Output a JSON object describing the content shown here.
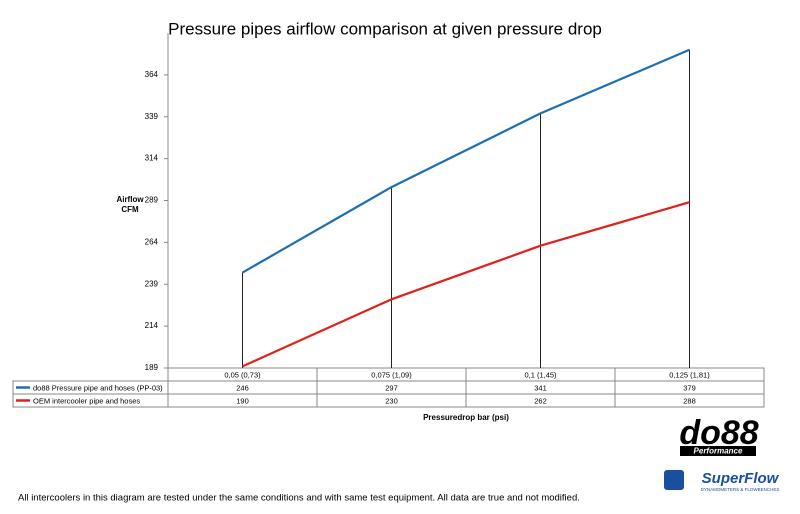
{
  "chart_data": {
    "type": "line",
    "title": "Pressure pipes airflow comparison at given pressure drop",
    "ylabel": [
      "Airflow",
      "CFM"
    ],
    "xlabel": "Pressuredrop bar (psi)",
    "categories": [
      "0,05 (0,73)",
      "0,075 (1,09)",
      "0,1 (1,45)",
      "0,125 (1,81)"
    ],
    "series": [
      {
        "name": "do88 Pressure pipe and hoses (PP-03)",
        "color": "#1f6fb0",
        "values": [
          246,
          297,
          341,
          379
        ]
      },
      {
        "name": "OEM intercooler pipe and hoses",
        "color": "#e0201b",
        "values": [
          190,
          230,
          262,
          288
        ]
      }
    ],
    "ylim": [
      189,
      389
    ],
    "yticks": [
      189,
      214,
      239,
      264,
      289,
      314,
      339,
      364
    ],
    "grid": false,
    "drop_lines": true
  },
  "footnote": "All intercoolers in this diagram are tested under the same conditions and with same test equipment. All data are true and not modified.",
  "logos": {
    "do88": "do88",
    "do88_sub": "Performance",
    "superflow": "SuperFlow",
    "superflow_sub": "DYNAMOMETERS & FLOWBENCHES"
  }
}
